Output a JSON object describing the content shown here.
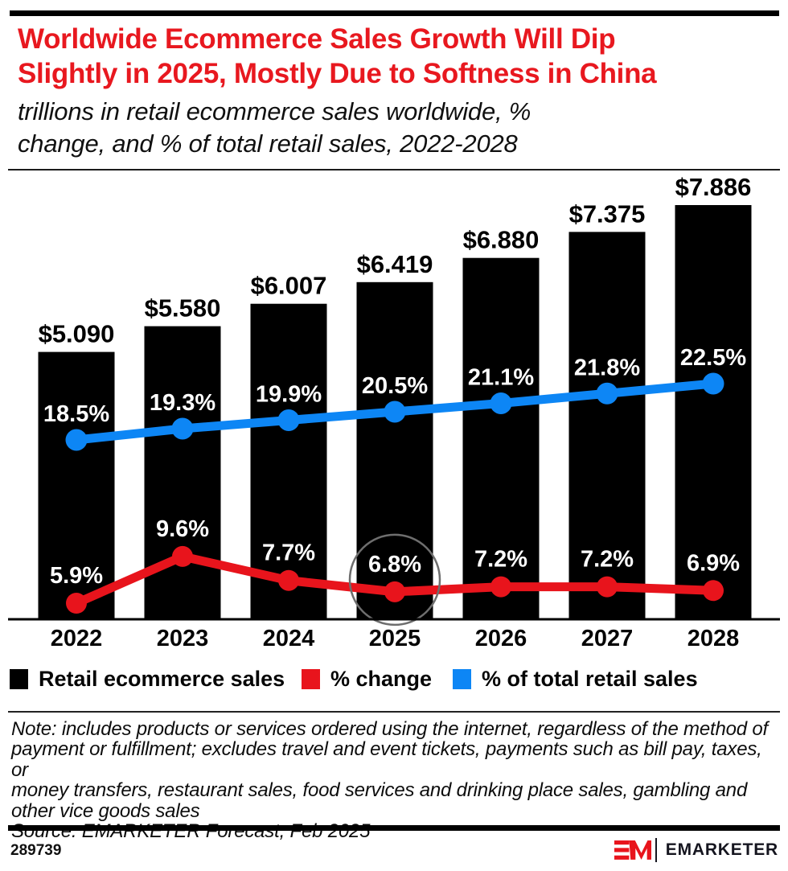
{
  "header": {
    "title_lines": [
      "Worldwide Ecommerce Sales Growth Will Dip",
      "Slightly in 2025, Mostly Due to Softness in China"
    ],
    "title_color": "#e8181f",
    "subtitle_lines": [
      "trillions in retail ecommerce sales worldwide, %",
      "change, and % of total retail sales, 2022-2028"
    ]
  },
  "chart_data": {
    "type": "combo_bar_line",
    "title": "Worldwide Ecommerce Sales Growth Will Dip Slightly in 2025, Mostly Due to Softness in China",
    "subtitle": "trillions in retail ecommerce sales worldwide, % change, and % of total retail sales, 2022-2028",
    "categories": [
      "2022",
      "2023",
      "2024",
      "2025",
      "2026",
      "2027",
      "2028"
    ],
    "series": [
      {
        "name": "Retail ecommerce sales",
        "type": "bar",
        "unit": "trillions of US dollars",
        "color": "#000000",
        "values": [
          5.09,
          5.58,
          6.007,
          6.419,
          6.88,
          7.375,
          7.886
        ],
        "labels": [
          "$5.090",
          "$5.580",
          "$6.007",
          "$6.419",
          "$6.880",
          "$7.375",
          "$7.886"
        ],
        "label_color": "#000000"
      },
      {
        "name": "% change",
        "type": "line",
        "unit": "percent",
        "color": "#e8141c",
        "values": [
          5.9,
          9.6,
          7.7,
          6.8,
          7.2,
          7.2,
          6.9
        ],
        "labels": [
          "5.9%",
          "9.6%",
          "7.7%",
          "6.8%",
          "7.2%",
          "7.2%",
          "6.9%"
        ],
        "label_color": "#ffffff"
      },
      {
        "name": "% of total retail sales",
        "type": "line",
        "unit": "percent",
        "color": "#0d86f5",
        "values": [
          18.5,
          19.3,
          19.9,
          20.5,
          21.1,
          21.8,
          22.5
        ],
        "labels": [
          "18.5%",
          "19.3%",
          "19.9%",
          "20.5%",
          "21.1%",
          "21.8%",
          "22.5%"
        ],
        "label_color": "#ffffff"
      }
    ],
    "annotation": {
      "type": "circle",
      "category": "2025",
      "series": "% change",
      "stroke_color": "#6e6e6e"
    },
    "ylim_bar": [
      0,
      7.886
    ],
    "grid": false,
    "legend_position": "bottom",
    "axis_color": "#000000"
  },
  "note": {
    "lines": [
      "Note: includes products or services ordered using the internet, regardless of the method of",
      "payment or fulfillment; excludes travel and event tickets, payments such as bill pay, taxes, or",
      "money transfers, restaurant sales, food services and drinking place sales, gambling and",
      "other vice goods sales",
      "Source: EMARKETER Forecast, Feb 2025"
    ]
  },
  "footer": {
    "chart_id": "289739",
    "brand_monogram": "EM",
    "brand_wordmark": "EMARKETER",
    "brand_color": "#e8141c"
  }
}
